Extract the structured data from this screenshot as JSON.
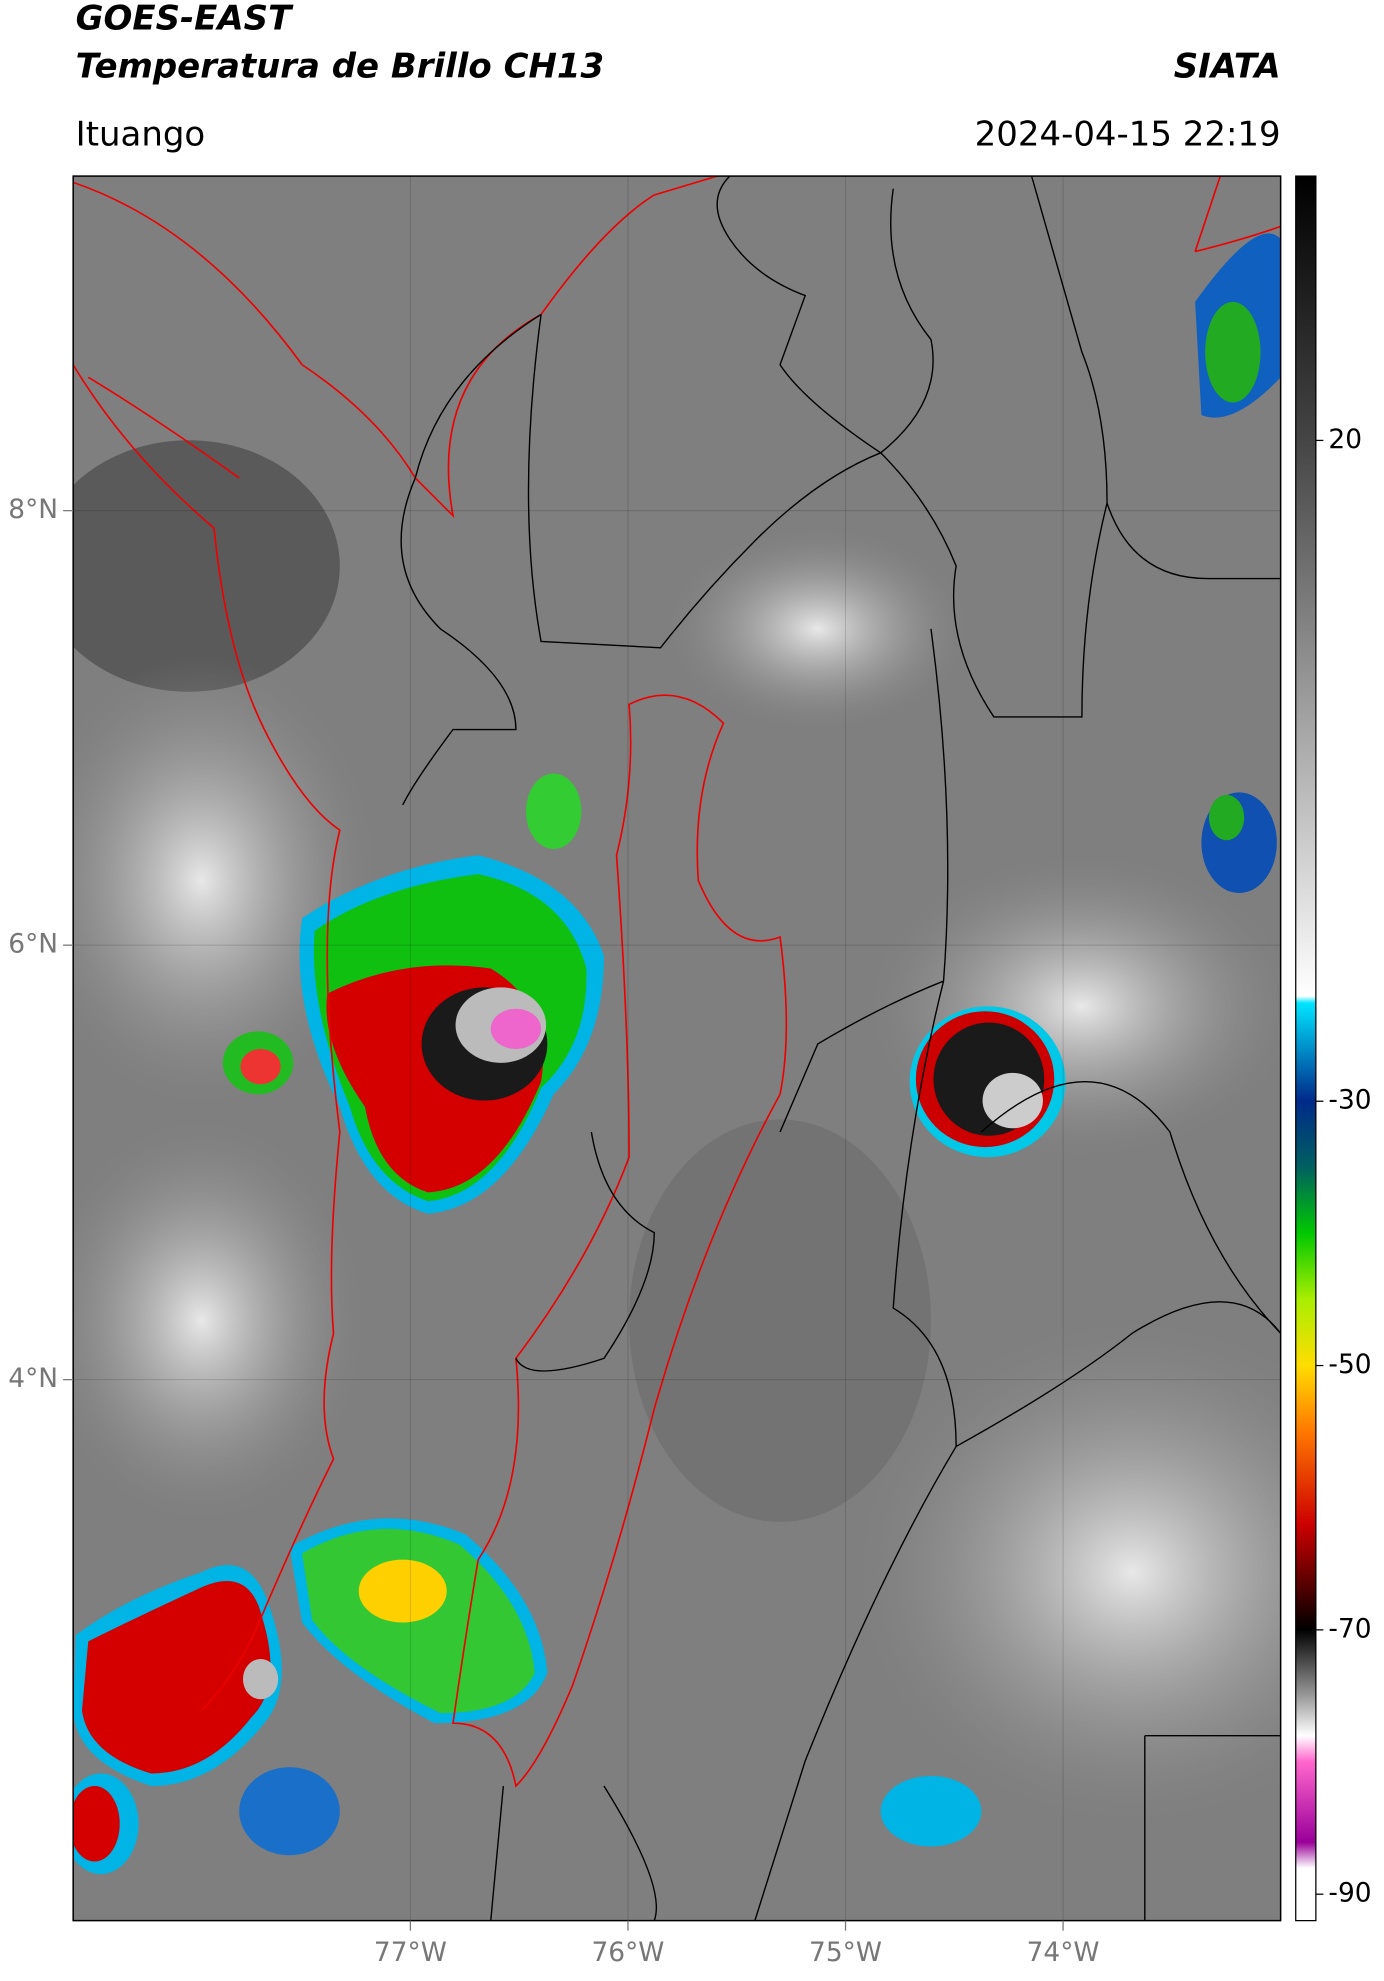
{
  "header": {
    "title": "GOES-EAST",
    "subtitle": "Temperatura de Brillo CH13",
    "source": "SIATA",
    "location": "Ituango",
    "timestamp": "2024-04-15 22:19"
  },
  "map": {
    "xlim": [
      -78.55,
      -73.0
    ],
    "ylim": [
      1.51,
      9.54
    ],
    "xticks": [
      {
        "value": -77,
        "label": "77°W"
      },
      {
        "value": -76,
        "label": "76°W"
      },
      {
        "value": -75,
        "label": "75°W"
      },
      {
        "value": -74,
        "label": "74°W"
      }
    ],
    "yticks": [
      {
        "value": 8,
        "label": "8°N"
      },
      {
        "value": 6,
        "label": "6°N"
      },
      {
        "value": 4,
        "label": "4°N"
      }
    ],
    "grid": true
  },
  "colorbar": {
    "range": [
      -92,
      40
    ],
    "ticks": [
      20,
      -30,
      -50,
      -70,
      -90
    ]
  }
}
